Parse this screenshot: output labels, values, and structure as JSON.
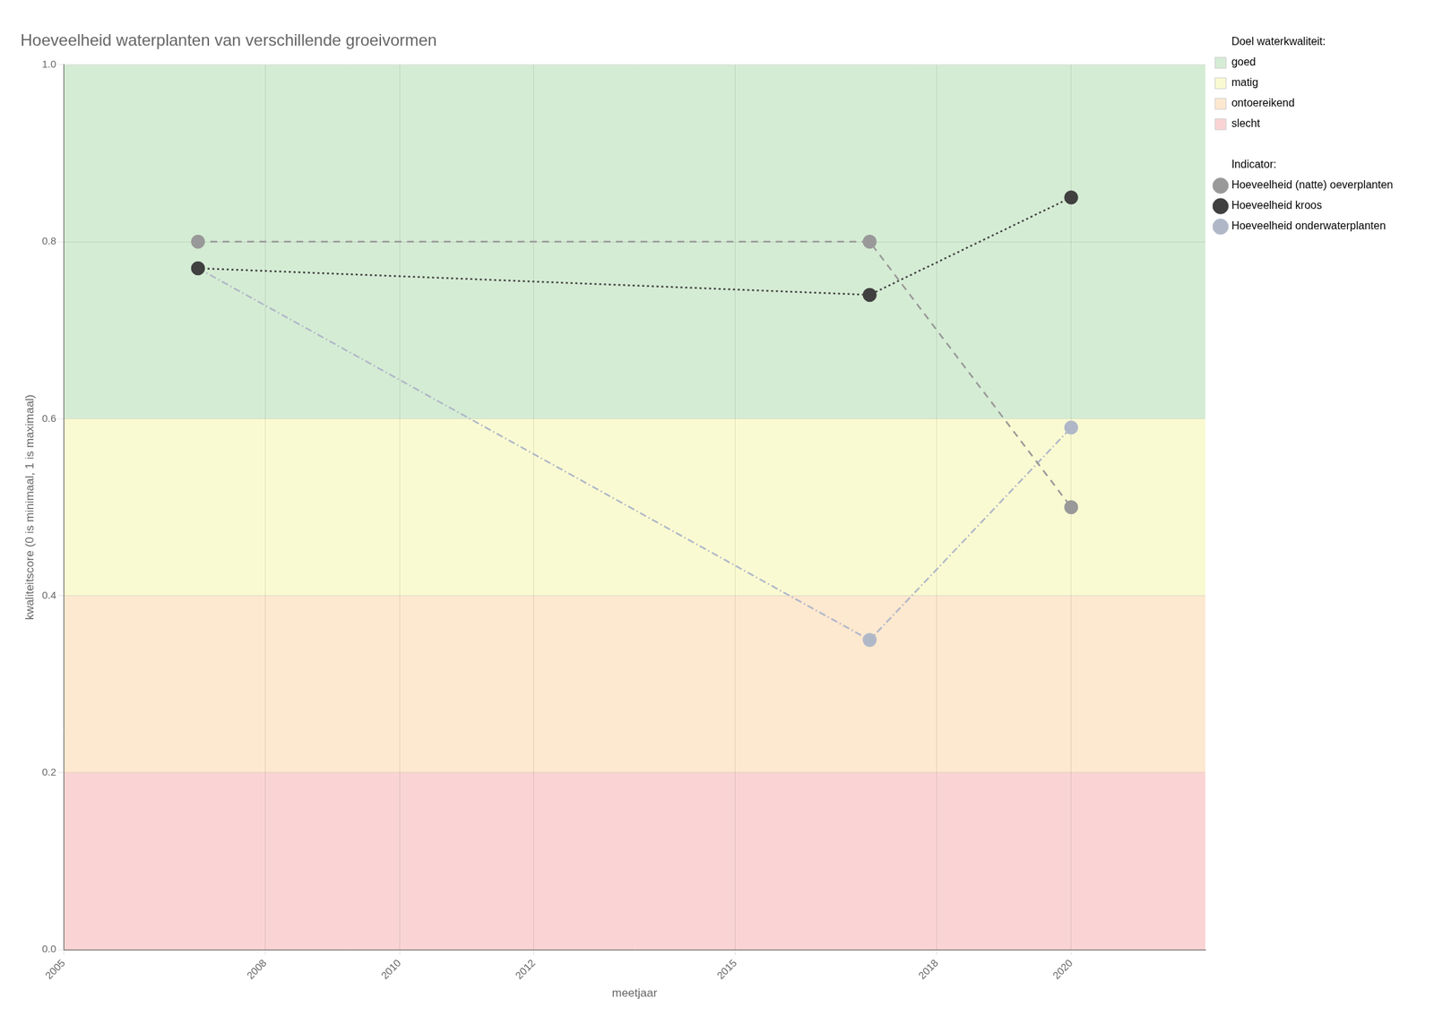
{
  "chart_data": {
    "type": "line",
    "title": "Hoeveelheid waterplanten van verschillende groeivormen",
    "xlabel": "meetjaar",
    "ylabel": "kwaliteitscore (0 is minimaal, 1 is maximaal)",
    "xlim": [
      2005,
      2022
    ],
    "ylim": [
      0.0,
      1.0
    ],
    "xticks": [
      2005,
      2008,
      2010,
      2012,
      2015,
      2018,
      2020
    ],
    "yticks": [
      {
        "value": 0.0,
        "label": "0.0"
      },
      0.2,
      0.4,
      0.6,
      0.8,
      {
        "value": 1.0,
        "label": "1.0"
      }
    ],
    "grid": true,
    "legend": "right",
    "zones_title": "Doel waterkwaliteit:",
    "zones": [
      {
        "name": "goed",
        "ymin": 0.6,
        "ymax": 1.0,
        "color": "#d5ecd4"
      },
      {
        "name": "matig",
        "ymin": 0.4,
        "ymax": 0.6,
        "color": "#fafad2"
      },
      {
        "name": "ontoereikend",
        "ymin": 0.2,
        "ymax": 0.4,
        "color": "#fde8d0"
      },
      {
        "name": "slecht",
        "ymin": 0.0,
        "ymax": 0.2,
        "color": "#fad4d4"
      }
    ],
    "series_title": "Indicator:",
    "x": [
      2007,
      2017,
      2020
    ],
    "series": [
      {
        "name": "Hoeveelheid (natte) oeverplanten",
        "values": [
          0.8,
          0.8,
          0.5
        ],
        "color": "#999999",
        "line_style": "dashed",
        "marker": "circle"
      },
      {
        "name": "Hoeveelheid kroos",
        "values": [
          0.77,
          0.74,
          0.85
        ],
        "color": "#404040",
        "line_style": "dotted",
        "marker": "circle"
      },
      {
        "name": "Hoeveelheid onderwaterplanten",
        "values": [
          0.77,
          0.35,
          0.59
        ],
        "color": "#b0b8c8",
        "line_style": "dashdot",
        "marker": "circle"
      }
    ]
  }
}
